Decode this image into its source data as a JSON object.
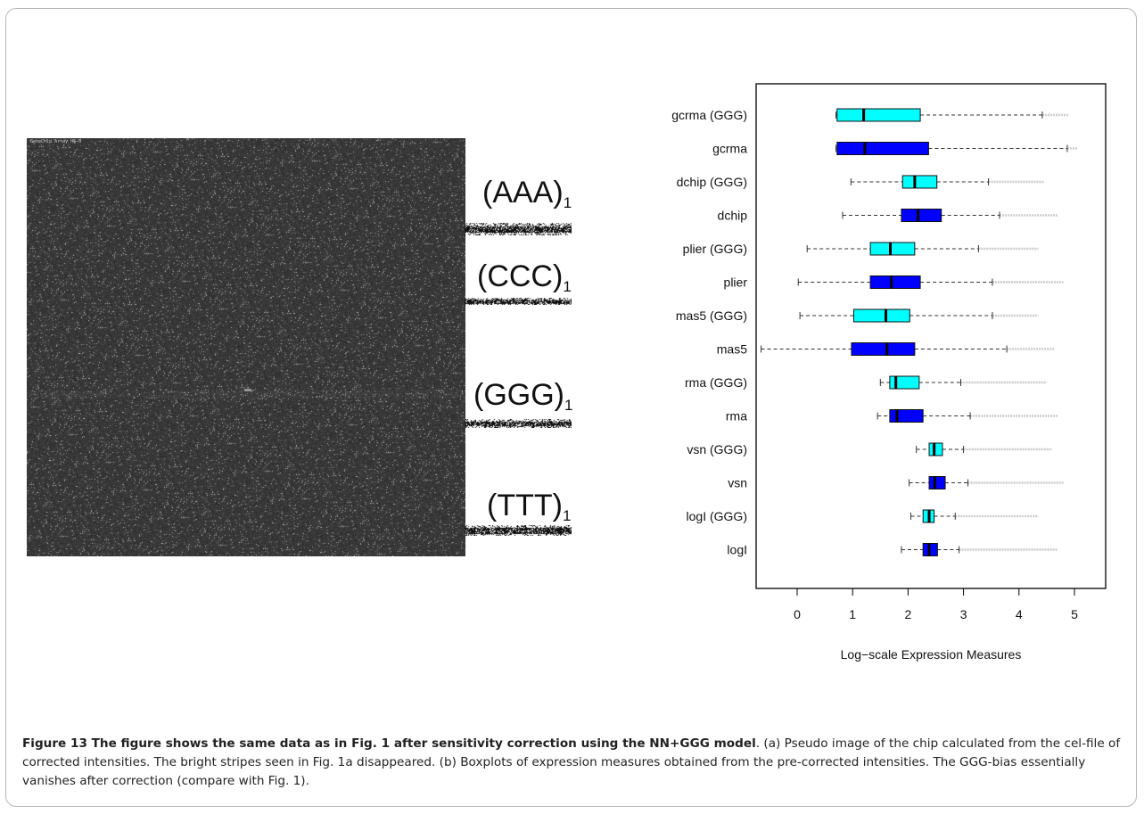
{
  "panel_a": {
    "chip_label": "GeneChip Array HG-U",
    "motifs": [
      {
        "label": "(AAA)",
        "subscript": "1"
      },
      {
        "label": "(CCC)",
        "subscript": "1"
      },
      {
        "label": "(GGG)",
        "subscript": "1"
      },
      {
        "label": "(TTT)",
        "subscript": "1"
      }
    ]
  },
  "chart_data": {
    "type": "boxplot",
    "orientation": "horizontal",
    "xlabel": "Log−scale Expression Measures",
    "xlim": [
      -0.75,
      5.3
    ],
    "x_ticks": [
      "0",
      "1",
      "2",
      "3",
      "4",
      "5"
    ],
    "colors": {
      "GGG": "#00ffff",
      "original": "#0000ff"
    },
    "series": [
      {
        "name": "gcrma (GGG)",
        "whisker_low": 0.7,
        "q1": 0.72,
        "median": 1.2,
        "q3": 2.22,
        "whisker_high": 4.42,
        "outlier_max": 4.9
      },
      {
        "name": "gcrma",
        "whisker_low": 0.7,
        "q1": 0.72,
        "median": 1.22,
        "q3": 2.37,
        "whisker_high": 4.87,
        "outlier_max": 5.05
      },
      {
        "name": "dchip (GGG)",
        "whisker_low": 0.97,
        "q1": 1.9,
        "median": 2.12,
        "q3": 2.52,
        "whisker_high": 3.45,
        "outlier_max": 4.45
      },
      {
        "name": "dchip",
        "whisker_low": 0.82,
        "q1": 1.88,
        "median": 2.18,
        "q3": 2.6,
        "whisker_high": 3.65,
        "outlier_max": 4.7
      },
      {
        "name": "plier (GGG)",
        "whisker_low": 0.18,
        "q1": 1.32,
        "median": 1.68,
        "q3": 2.12,
        "whisker_high": 3.27,
        "outlier_max": 4.35
      },
      {
        "name": "plier",
        "whisker_low": 0.02,
        "q1": 1.32,
        "median": 1.7,
        "q3": 2.22,
        "whisker_high": 3.52,
        "outlier_max": 4.8
      },
      {
        "name": "mas5 (GGG)",
        "whisker_low": 0.05,
        "q1": 1.02,
        "median": 1.6,
        "q3": 2.03,
        "whisker_high": 3.52,
        "outlier_max": 4.35
      },
      {
        "name": "mas5",
        "whisker_low": -0.65,
        "q1": 0.98,
        "median": 1.62,
        "q3": 2.12,
        "whisker_high": 3.78,
        "outlier_max": 4.65
      },
      {
        "name": "rma (GGG)",
        "whisker_low": 1.5,
        "q1": 1.67,
        "median": 1.78,
        "q3": 2.2,
        "whisker_high": 2.95,
        "outlier_max": 4.5
      },
      {
        "name": "rma",
        "whisker_low": 1.45,
        "q1": 1.67,
        "median": 1.8,
        "q3": 2.27,
        "whisker_high": 3.12,
        "outlier_max": 4.7
      },
      {
        "name": "vsn (GGG)",
        "whisker_low": 2.15,
        "q1": 2.38,
        "median": 2.47,
        "q3": 2.62,
        "whisker_high": 3.0,
        "outlier_max": 4.6
      },
      {
        "name": "vsn",
        "whisker_low": 2.02,
        "q1": 2.38,
        "median": 2.48,
        "q3": 2.67,
        "whisker_high": 3.08,
        "outlier_max": 4.8
      },
      {
        "name": "logI (GGG)",
        "whisker_low": 2.05,
        "q1": 2.27,
        "median": 2.38,
        "q3": 2.47,
        "whisker_high": 2.85,
        "outlier_max": 4.35
      },
      {
        "name": "logI",
        "whisker_low": 1.88,
        "q1": 2.27,
        "median": 2.38,
        "q3": 2.53,
        "whisker_high": 2.92,
        "outlier_max": 4.7
      }
    ]
  },
  "caption": {
    "title": "Figure 13 The figure shows the same data as in Fig. 1 after sensitivity correction using the NN+GGG model",
    "body": ". (a) Pseudo image of the chip calculated from the cel-file of corrected intensities. The bright stripes seen in Fig. 1a disappeared. (b) Boxplots of expression measures obtained from the pre-corrected intensities. The GGG-bias essentially vanishes after correction (compare with Fig. 1)."
  }
}
